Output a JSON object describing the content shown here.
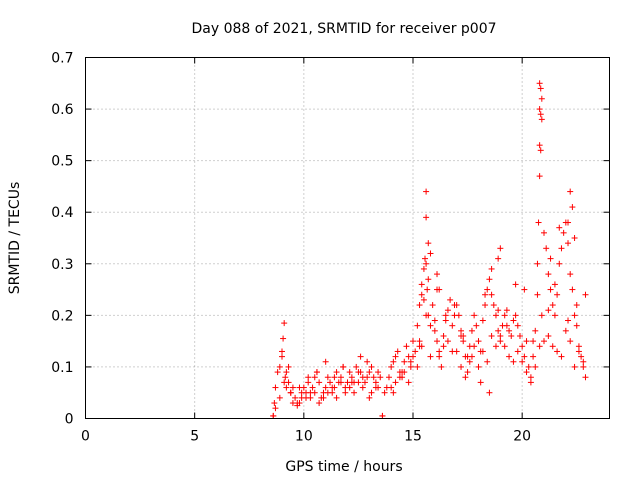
{
  "chart_data": {
    "type": "scatter",
    "title": "Day 088 of 2021, SRMTID for receiver p007",
    "xlabel": "GPS time / hours",
    "ylabel": "SRMTID / TECUs",
    "xlim": [
      0,
      24
    ],
    "ylim": [
      0,
      0.7
    ],
    "xticks": [
      0,
      5,
      10,
      15,
      20
    ],
    "xtick_labels": [
      "0",
      "5",
      "10",
      "15",
      "20"
    ],
    "yticks": [
      0,
      0.1,
      0.2,
      0.3,
      0.4,
      0.5,
      0.6,
      0.7
    ],
    "ytick_labels": [
      "0",
      "0.1",
      "0.2",
      "0.3",
      "0.4",
      "0.5",
      "0.6",
      "0.7"
    ],
    "grid": true,
    "marker": "+",
    "series": [
      {
        "name": "SRMTID",
        "color": "#ff0000",
        "x": [
          8.6,
          8.65,
          8.7,
          8.8,
          8.9,
          9.0,
          9.05,
          9.1,
          9.15,
          9.2,
          9.3,
          9.4,
          9.5,
          9.6,
          9.7,
          9.8,
          9.9,
          10.0,
          10.1,
          10.2,
          10.3,
          10.4,
          10.5,
          10.6,
          10.7,
          10.8,
          10.9,
          11.0,
          11.1,
          11.2,
          11.3,
          11.4,
          11.5,
          11.6,
          11.7,
          11.8,
          11.9,
          12.0,
          12.1,
          12.2,
          12.3,
          12.4,
          12.5,
          12.6,
          12.7,
          12.8,
          12.9,
          13.0,
          13.1,
          13.2,
          13.3,
          13.4,
          13.6,
          13.7,
          13.8,
          13.9,
          14.0,
          14.1,
          14.2,
          14.3,
          14.4,
          14.5,
          14.6,
          14.7,
          14.8,
          14.9,
          15.0,
          15.1,
          15.2,
          15.3,
          15.4,
          15.5,
          15.55,
          15.6,
          15.65,
          15.7,
          15.8,
          15.9,
          16.0,
          16.1,
          16.2,
          16.3,
          16.4,
          16.5,
          16.6,
          16.7,
          16.8,
          16.9,
          17.0,
          17.1,
          17.2,
          17.3,
          17.4,
          17.5,
          17.6,
          17.7,
          17.8,
          17.9,
          18.0,
          18.1,
          18.2,
          18.3,
          18.4,
          18.5,
          18.6,
          18.7,
          18.8,
          18.9,
          19.0,
          19.1,
          19.2,
          19.3,
          19.4,
          19.5,
          19.6,
          19.7,
          19.8,
          19.9,
          20.0,
          20.1,
          20.2,
          20.3,
          20.4,
          20.5,
          20.6,
          20.7,
          20.75,
          20.8,
          20.85,
          20.9,
          21.0,
          21.1,
          21.2,
          21.3,
          21.4,
          21.5,
          21.6,
          21.7,
          21.8,
          21.9,
          22.0,
          22.1,
          22.2,
          22.3,
          22.4,
          22.5,
          22.6,
          22.7,
          22.8,
          22.9,
          8.7,
          8.9,
          9.1,
          9.3,
          9.5,
          9.7,
          9.9,
          10.1,
          10.3,
          10.5,
          10.7,
          10.9,
          11.1,
          11.3,
          11.5,
          11.7,
          11.9,
          12.1,
          12.3,
          12.5,
          12.7,
          12.9,
          13.1,
          13.3,
          13.5,
          14.0,
          14.2,
          14.4,
          14.6,
          14.8,
          15.0,
          15.2,
          15.4,
          15.6,
          15.8,
          16.0,
          16.2,
          16.4,
          16.6,
          16.8,
          17.0,
          17.2,
          17.4,
          17.6,
          17.8,
          18.0,
          18.2,
          18.4,
          18.6,
          18.8,
          19.0,
          19.2,
          19.4,
          19.6,
          19.8,
          20.0,
          20.2,
          20.4,
          20.6,
          20.8,
          21.0,
          21.2,
          21.4,
          21.6,
          21.8,
          22.0,
          22.2,
          22.4,
          22.6,
          22.8,
          9.0,
          9.2,
          9.4,
          9.8,
          10.2,
          10.6,
          11.0,
          11.4,
          11.8,
          12.2,
          12.6,
          13.0,
          13.4,
          14.1,
          14.5,
          14.9,
          15.3,
          15.5,
          15.7,
          16.1,
          16.5,
          16.9,
          17.3,
          17.7,
          18.1,
          18.5,
          18.9,
          19.3,
          19.7,
          20.1,
          20.5,
          20.7,
          20.9,
          21.3,
          21.7,
          22.1,
          22.5,
          22.9,
          15.6,
          15.6,
          15.7,
          15.8,
          20.8,
          20.85,
          20.9,
          20.8,
          20.85,
          20.8,
          22.2,
          22.3,
          22.1,
          22.4,
          21.5,
          21.2,
          18.9,
          19.0,
          8.6,
          13.6,
          15.3,
          15.4,
          16.1,
          16.2,
          17.2,
          17.5,
          18.3,
          18.6
        ],
        "y": [
          0.005,
          0.03,
          0.06,
          0.09,
          0.1,
          0.12,
          0.155,
          0.185,
          0.08,
          0.06,
          0.07,
          0.05,
          0.03,
          0.04,
          0.025,
          0.03,
          0.05,
          0.06,
          0.04,
          0.07,
          0.05,
          0.06,
          0.08,
          0.09,
          0.07,
          0.04,
          0.05,
          0.06,
          0.08,
          0.07,
          0.05,
          0.06,
          0.09,
          0.07,
          0.08,
          0.1,
          0.06,
          0.07,
          0.09,
          0.08,
          0.07,
          0.1,
          0.09,
          0.12,
          0.08,
          0.07,
          0.11,
          0.09,
          0.1,
          0.08,
          0.06,
          0.09,
          0.005,
          0.05,
          0.06,
          0.08,
          0.1,
          0.11,
          0.12,
          0.13,
          0.09,
          0.08,
          0.11,
          0.14,
          0.12,
          0.1,
          0.15,
          0.13,
          0.18,
          0.22,
          0.26,
          0.29,
          0.31,
          0.3,
          0.25,
          0.2,
          0.18,
          0.22,
          0.19,
          0.15,
          0.13,
          0.1,
          0.16,
          0.19,
          0.21,
          0.23,
          0.18,
          0.2,
          0.22,
          0.2,
          0.17,
          0.16,
          0.12,
          0.09,
          0.14,
          0.17,
          0.2,
          0.18,
          0.15,
          0.13,
          0.19,
          0.22,
          0.25,
          0.27,
          0.24,
          0.22,
          0.2,
          0.17,
          0.15,
          0.18,
          0.2,
          0.21,
          0.17,
          0.16,
          0.19,
          0.2,
          0.18,
          0.16,
          0.14,
          0.12,
          0.15,
          0.1,
          0.08,
          0.12,
          0.17,
          0.3,
          0.38,
          0.47,
          0.52,
          0.58,
          0.36,
          0.33,
          0.28,
          0.25,
          0.22,
          0.2,
          0.24,
          0.3,
          0.33,
          0.36,
          0.38,
          0.34,
          0.28,
          0.25,
          0.2,
          0.18,
          0.14,
          0.12,
          0.1,
          0.08,
          0.02,
          0.04,
          0.07,
          0.1,
          0.06,
          0.03,
          0.04,
          0.05,
          0.04,
          0.05,
          0.03,
          0.04,
          0.05,
          0.06,
          0.04,
          0.07,
          0.05,
          0.06,
          0.05,
          0.07,
          0.06,
          0.08,
          0.05,
          0.07,
          0.08,
          0.06,
          0.07,
          0.08,
          0.09,
          0.07,
          0.12,
          0.1,
          0.14,
          0.2,
          0.12,
          0.17,
          0.12,
          0.14,
          0.15,
          0.13,
          0.13,
          0.1,
          0.08,
          0.11,
          0.14,
          0.1,
          0.13,
          0.11,
          0.16,
          0.14,
          0.16,
          0.14,
          0.12,
          0.11,
          0.13,
          0.11,
          0.09,
          0.07,
          0.1,
          0.14,
          0.15,
          0.16,
          0.14,
          0.13,
          0.12,
          0.17,
          0.15,
          0.1,
          0.13,
          0.11,
          0.13,
          0.09,
          0.05,
          0.06,
          0.08,
          0.09,
          0.11,
          0.08,
          0.1,
          0.07,
          0.09,
          0.04,
          0.06,
          0.05,
          0.09,
          0.11,
          0.15,
          0.23,
          0.27,
          0.25,
          0.2,
          0.22,
          0.15,
          0.12,
          0.07,
          0.05,
          0.21,
          0.18,
          0.26,
          0.25,
          0.15,
          0.24,
          0.2,
          0.31,
          0.37,
          0.19,
          0.22,
          0.24,
          0.44,
          0.39,
          0.34,
          0.32,
          0.65,
          0.64,
          0.62,
          0.6,
          0.59,
          0.53,
          0.44,
          0.41,
          0.38,
          0.35,
          0.26,
          0.21,
          0.31,
          0.33,
          0.005,
          0.005,
          0.14,
          0.24,
          0.28,
          0.25,
          0.16,
          0.12,
          0.24,
          0.29
        ]
      }
    ]
  }
}
